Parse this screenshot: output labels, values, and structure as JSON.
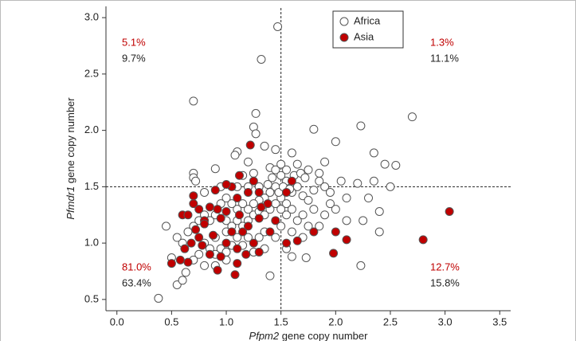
{
  "chart_data": {
    "type": "scatter",
    "xlabel": {
      "gene": "Pfpm2",
      "rest": "gene copy number"
    },
    "ylabel": {
      "gene": "Pfmdr1",
      "rest": "gene copy number"
    },
    "xlim": [
      -0.1,
      3.6
    ],
    "ylim": [
      0.4,
      3.1
    ],
    "xticks": [
      {
        "value": 0,
        "label": "0.0"
      },
      0.5,
      {
        "value": 1,
        "label": "1.0"
      },
      1.5,
      {
        "value": 2,
        "label": "2.0"
      },
      2.5,
      {
        "value": 3,
        "label": "3.0"
      },
      3.5
    ],
    "yticks": [
      0.5,
      {
        "value": 1,
        "label": "1.0"
      },
      1.5,
      {
        "value": 2,
        "label": "2.0"
      },
      2.5,
      {
        "value": 3,
        "label": "3.0"
      }
    ],
    "vline": 1.5,
    "hline": 1.5,
    "legend": "upper center",
    "quadrant_labels": [
      {
        "asia": "5.1%",
        "africa": "9.7%"
      },
      {
        "asia": "1.3%",
        "africa": "11.1%"
      },
      {
        "asia": "81.0%",
        "africa": "63.4%"
      },
      {
        "asia": "12.7%",
        "africa": "15.8%"
      }
    ],
    "series": [
      {
        "name": "Africa",
        "color": "#ffffff",
        "edgecolor": "#555555",
        "x": [
          1.47,
          1.32,
          0.7,
          2.7,
          1.27,
          2.23,
          1.25,
          1.8,
          1.27,
          2.0,
          1.1,
          1.08,
          1.35,
          1.45,
          1.2,
          2.35,
          1.6,
          2.45,
          2.55,
          1.9,
          0.9,
          0.7,
          0.7,
          0.72,
          1.4,
          1.45,
          0.38,
          0.55,
          0.6,
          0.63,
          1.4,
          2.23,
          0.5,
          0.45,
          1.73,
          2.4,
          2.4,
          2.1,
          2.2,
          2.05,
          1.5,
          1.55,
          1.6,
          1.65,
          1.7,
          1.75,
          1.8,
          1.85,
          1.9,
          1.95,
          1.62,
          1.68,
          1.72,
          1.55,
          1.5,
          1.45,
          1.4,
          1.35,
          1.3,
          1.25,
          1.2,
          1.15,
          1.1,
          1.05,
          1.0,
          0.95,
          0.9,
          0.85,
          0.8,
          0.75,
          1.0,
          1.05,
          1.1,
          1.15,
          1.2,
          1.25,
          1.3,
          1.35,
          1.4,
          1.45,
          1.5,
          1.55,
          1.6,
          1.65,
          1.7,
          1.8,
          1.9,
          2.0,
          2.1,
          1.6,
          1.7,
          1.5,
          1.45,
          1.35,
          1.3,
          1.2,
          1.1,
          1.0,
          0.9,
          0.8,
          0.85,
          0.9,
          0.95,
          1.0,
          1.05,
          1.15,
          1.25,
          1.35,
          0.75,
          0.7,
          0.8,
          0.9,
          1.0,
          0.6,
          0.65,
          0.55,
          0.7,
          1.55,
          1.6,
          1.42,
          1.38,
          1.48,
          1.52,
          1.58,
          1.3,
          1.2,
          1.1,
          0.95,
          0.8,
          1.65,
          1.75,
          1.85,
          1.5,
          1.55,
          1.15,
          1.25,
          2.3,
          2.25,
          2.5,
          2.35,
          1.75,
          1.85,
          1.95
        ],
        "values": [
          2.92,
          2.63,
          2.26,
          2.12,
          2.15,
          2.04,
          2.03,
          2.01,
          1.97,
          1.9,
          1.81,
          1.78,
          1.86,
          1.83,
          1.72,
          1.8,
          1.8,
          1.7,
          1.69,
          1.72,
          1.66,
          1.62,
          1.58,
          1.55,
          1.67,
          1.65,
          0.51,
          0.63,
          0.67,
          0.74,
          0.71,
          0.8,
          0.87,
          1.15,
          0.87,
          1.1,
          1.28,
          1.4,
          1.53,
          1.55,
          1.4,
          1.35,
          1.45,
          1.5,
          1.42,
          1.38,
          1.47,
          1.55,
          1.5,
          1.45,
          1.6,
          1.62,
          1.58,
          1.55,
          1.6,
          1.5,
          1.45,
          1.4,
          1.38,
          1.35,
          1.3,
          1.35,
          1.3,
          1.35,
          1.4,
          1.35,
          1.25,
          1.2,
          1.25,
          1.2,
          1.2,
          1.15,
          1.2,
          1.15,
          1.2,
          1.25,
          1.28,
          1.25,
          1.3,
          1.35,
          1.3,
          1.25,
          1.3,
          1.2,
          1.25,
          1.3,
          1.25,
          1.3,
          1.2,
          1.1,
          1.05,
          1.15,
          1.05,
          1.1,
          1.05,
          1.05,
          1.05,
          1.1,
          1.05,
          1.0,
          0.95,
          0.9,
          0.95,
          0.92,
          0.98,
          0.98,
          0.92,
          0.95,
          0.9,
          0.85,
          0.8,
          0.8,
          0.85,
          1.0,
          1.1,
          1.05,
          1.15,
          0.95,
          0.88,
          1.58,
          1.52,
          1.45,
          1.5,
          1.48,
          1.5,
          1.5,
          1.5,
          1.5,
          1.45,
          1.7,
          1.65,
          1.62,
          1.7,
          1.65,
          1.6,
          1.62,
          1.4,
          1.2,
          1.5,
          1.55,
          1.15,
          1.15,
          1.35
        ]
      },
      {
        "name": "Asia",
        "color": "#c00000",
        "edgecolor": "#555555",
        "x": [
          3.04,
          2.8,
          2.1,
          2.0,
          1.98,
          1.8,
          1.65,
          1.55,
          1.22,
          0.5,
          0.58,
          0.62,
          0.6,
          0.65,
          0.7,
          0.75,
          0.8,
          0.85,
          0.72,
          0.75,
          0.78,
          0.68,
          0.92,
          0.95,
          1.0,
          1.05,
          1.1,
          1.12,
          1.2,
          1.25,
          1.3,
          1.32,
          1.38,
          1.05,
          1.0,
          0.95,
          0.92,
          1.08,
          1.1,
          1.15,
          1.2,
          1.25,
          1.4,
          1.45,
          0.85,
          0.88,
          1.3,
          1.6,
          1.55,
          1.0,
          0.9,
          1.1,
          1.18,
          1.3,
          0.65,
          0.7,
          0.8,
          1.12
        ],
        "values": [
          1.28,
          1.03,
          1.03,
          1.1,
          0.91,
          1.1,
          1.02,
          1.0,
          1.87,
          0.82,
          0.85,
          0.95,
          1.25,
          1.25,
          1.35,
          1.3,
          1.2,
          1.32,
          1.12,
          1.05,
          0.98,
          1.0,
          1.3,
          1.22,
          1.28,
          1.5,
          1.4,
          1.25,
          1.45,
          1.55,
          1.45,
          1.32,
          1.35,
          1.1,
          1.0,
          0.88,
          0.76,
          0.72,
          0.82,
          1.1,
          1.15,
          1.0,
          1.1,
          1.2,
          0.9,
          1.07,
          1.22,
          1.55,
          1.45,
          1.52,
          1.47,
          0.95,
          0.9,
          0.92,
          0.83,
          1.42,
          1.17,
          1.6
        ]
      }
    ]
  }
}
